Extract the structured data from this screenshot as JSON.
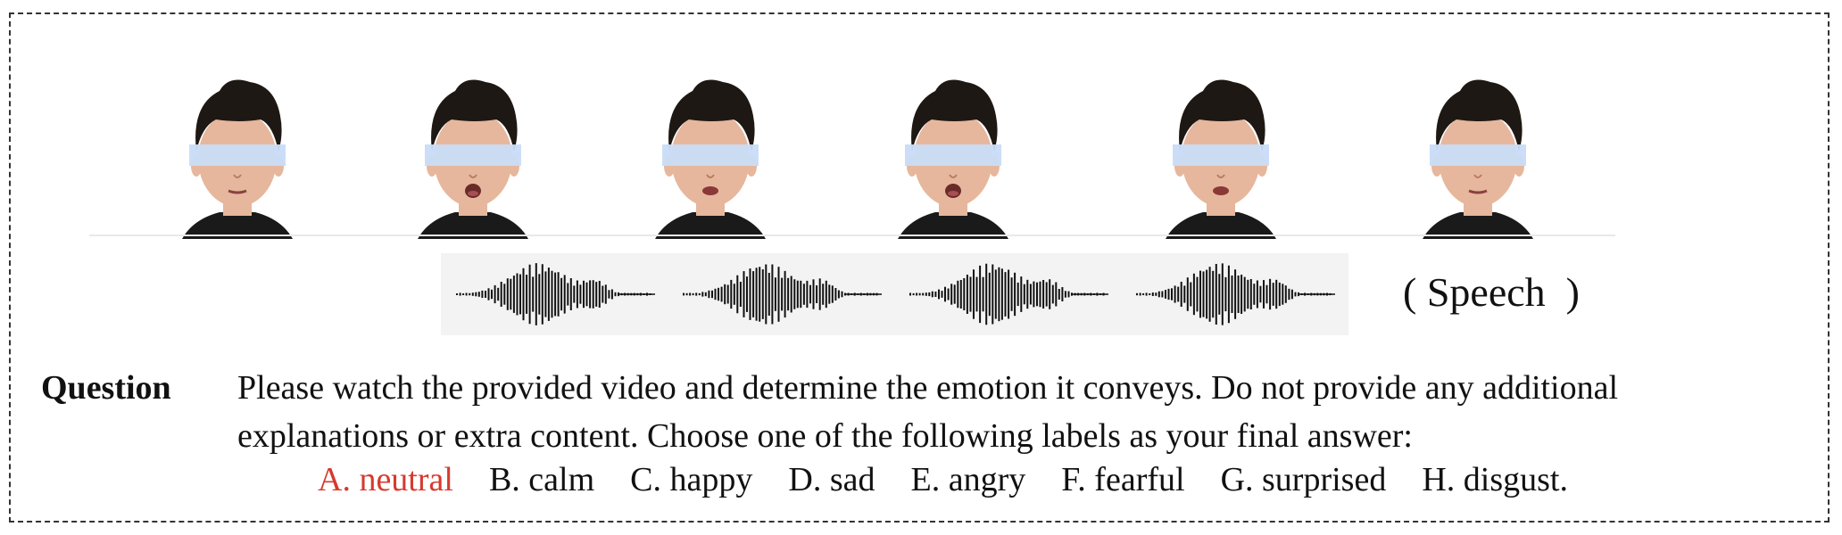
{
  "figure": {
    "frames": [
      {
        "id": 1,
        "mouth": "closed"
      },
      {
        "id": 2,
        "mouth": "open"
      },
      {
        "id": 3,
        "mouth": "half"
      },
      {
        "id": 4,
        "mouth": "open"
      },
      {
        "id": 5,
        "mouth": "half"
      },
      {
        "id": 6,
        "mouth": "closed"
      }
    ],
    "audio_segments": 4,
    "modality_label": "( Speech  )",
    "colors": {
      "eye_mask": "#c9dcf7",
      "correct_option": "#d63a2e",
      "text": "#111111",
      "hair": "#1e1814",
      "skin": "#e6b79d",
      "shirt": "#1a1a1a",
      "wave": "#111111"
    }
  },
  "question": {
    "label": "Question",
    "lines": [
      "Please watch the provided video and determine the emotion it conveys. Do not provide any additional",
      "explanations or extra content. Choose one of the following labels as your final answer:"
    ],
    "options": [
      {
        "text": "A. neutral",
        "correct": true
      },
      {
        "text": "B. calm",
        "correct": false
      },
      {
        "text": "C. happy",
        "correct": false
      },
      {
        "text": "D. sad",
        "correct": false
      },
      {
        "text": "E. angry",
        "correct": false
      },
      {
        "text": "F. fearful",
        "correct": false
      },
      {
        "text": "G. surprised",
        "correct": false
      },
      {
        "text": "H. disgust.",
        "correct": false
      }
    ]
  }
}
